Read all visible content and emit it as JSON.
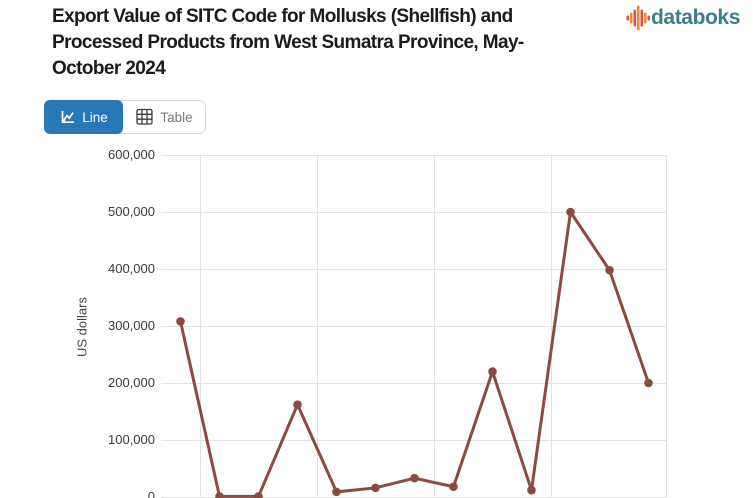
{
  "header": {
    "title_lines": [
      "Export Value of SITC Code for Mollusks (Shellfish) and",
      "Processed Products from West Sumatra Province, May-",
      "October 2024"
    ]
  },
  "logo": {
    "brand": "databoks",
    "icon_colors": [
      "#e0523c",
      "#f0883f"
    ]
  },
  "toolbar": {
    "line_label": "Line",
    "table_label": "Table",
    "active": "Line",
    "active_color": "#2878b8"
  },
  "chart_data": {
    "type": "line",
    "title": "Export Value of SITC Code for Mollusks (Shellfish) and Processed Products from West Sumatra Province, May-October 2024",
    "ylabel": "US dollars",
    "ylim": [
      0,
      600000
    ],
    "y_tick_labels": [
      "600,000",
      "500,000",
      "400,000",
      "300,000",
      "200,000",
      "100,000",
      "0"
    ],
    "x_labels_visible": false,
    "values": [
      308000,
      1000,
      1000,
      162000,
      9000,
      16000,
      33000,
      18000,
      220000,
      12000,
      500000,
      398000,
      200000
    ],
    "line_color": "#8b4a42",
    "grid": true
  }
}
